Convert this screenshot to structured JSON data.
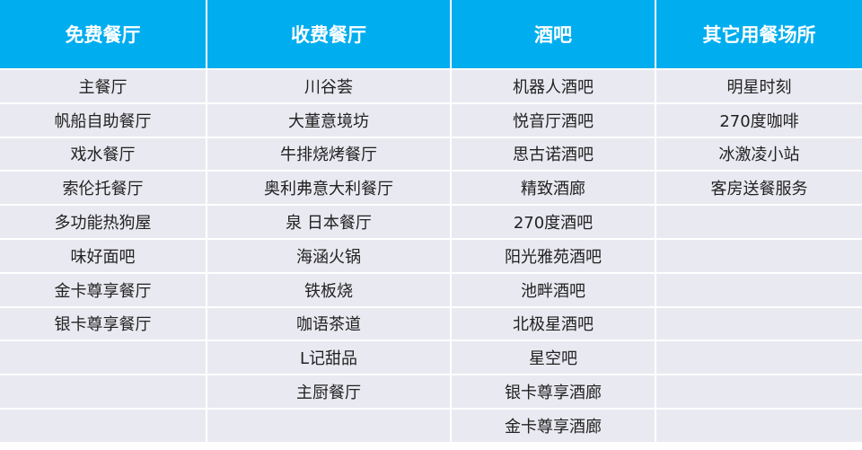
{
  "headers": [
    "免费餐厅",
    "收费餐厅",
    "酒吧",
    "其它用餐场所"
  ],
  "columns": [
    [
      "主餐厅",
      "帆船自助餐厅",
      "戏水餐厅",
      "索伦托餐厅",
      "多功能热狗屋",
      "味好面吧",
      "金卡尊享餐厅",
      "银卡尊享餐厅",
      "",
      "",
      ""
    ],
    [
      "川谷荟",
      "大董意境坊",
      "牛排烧烤餐厅",
      "奥利弗意大利餐厅",
      "泉 日本餐厅",
      "海涵火锅",
      "铁板烧",
      "咖语茶道",
      "L记甜品",
      "主厨餐厅",
      ""
    ],
    [
      "机器人酒吧",
      "悦音厅酒吧",
      "思古诺酒吧",
      "精致酒廊",
      "270度酒吧",
      "阳光雅苑酒吧",
      "池畔酒吧",
      "北极星酒吧",
      "星空吧",
      "银卡尊享酒廊",
      "金卡尊享酒廊"
    ],
    [
      "明星时刻",
      "270度咖啡",
      "冰激凌小站",
      "客房送餐服务",
      "",
      "",
      "",
      "",
      "",
      "",
      ""
    ]
  ],
  "colors": {
    "header_bg": "#00ADEF",
    "cell_bg": "#E9E9F1"
  }
}
